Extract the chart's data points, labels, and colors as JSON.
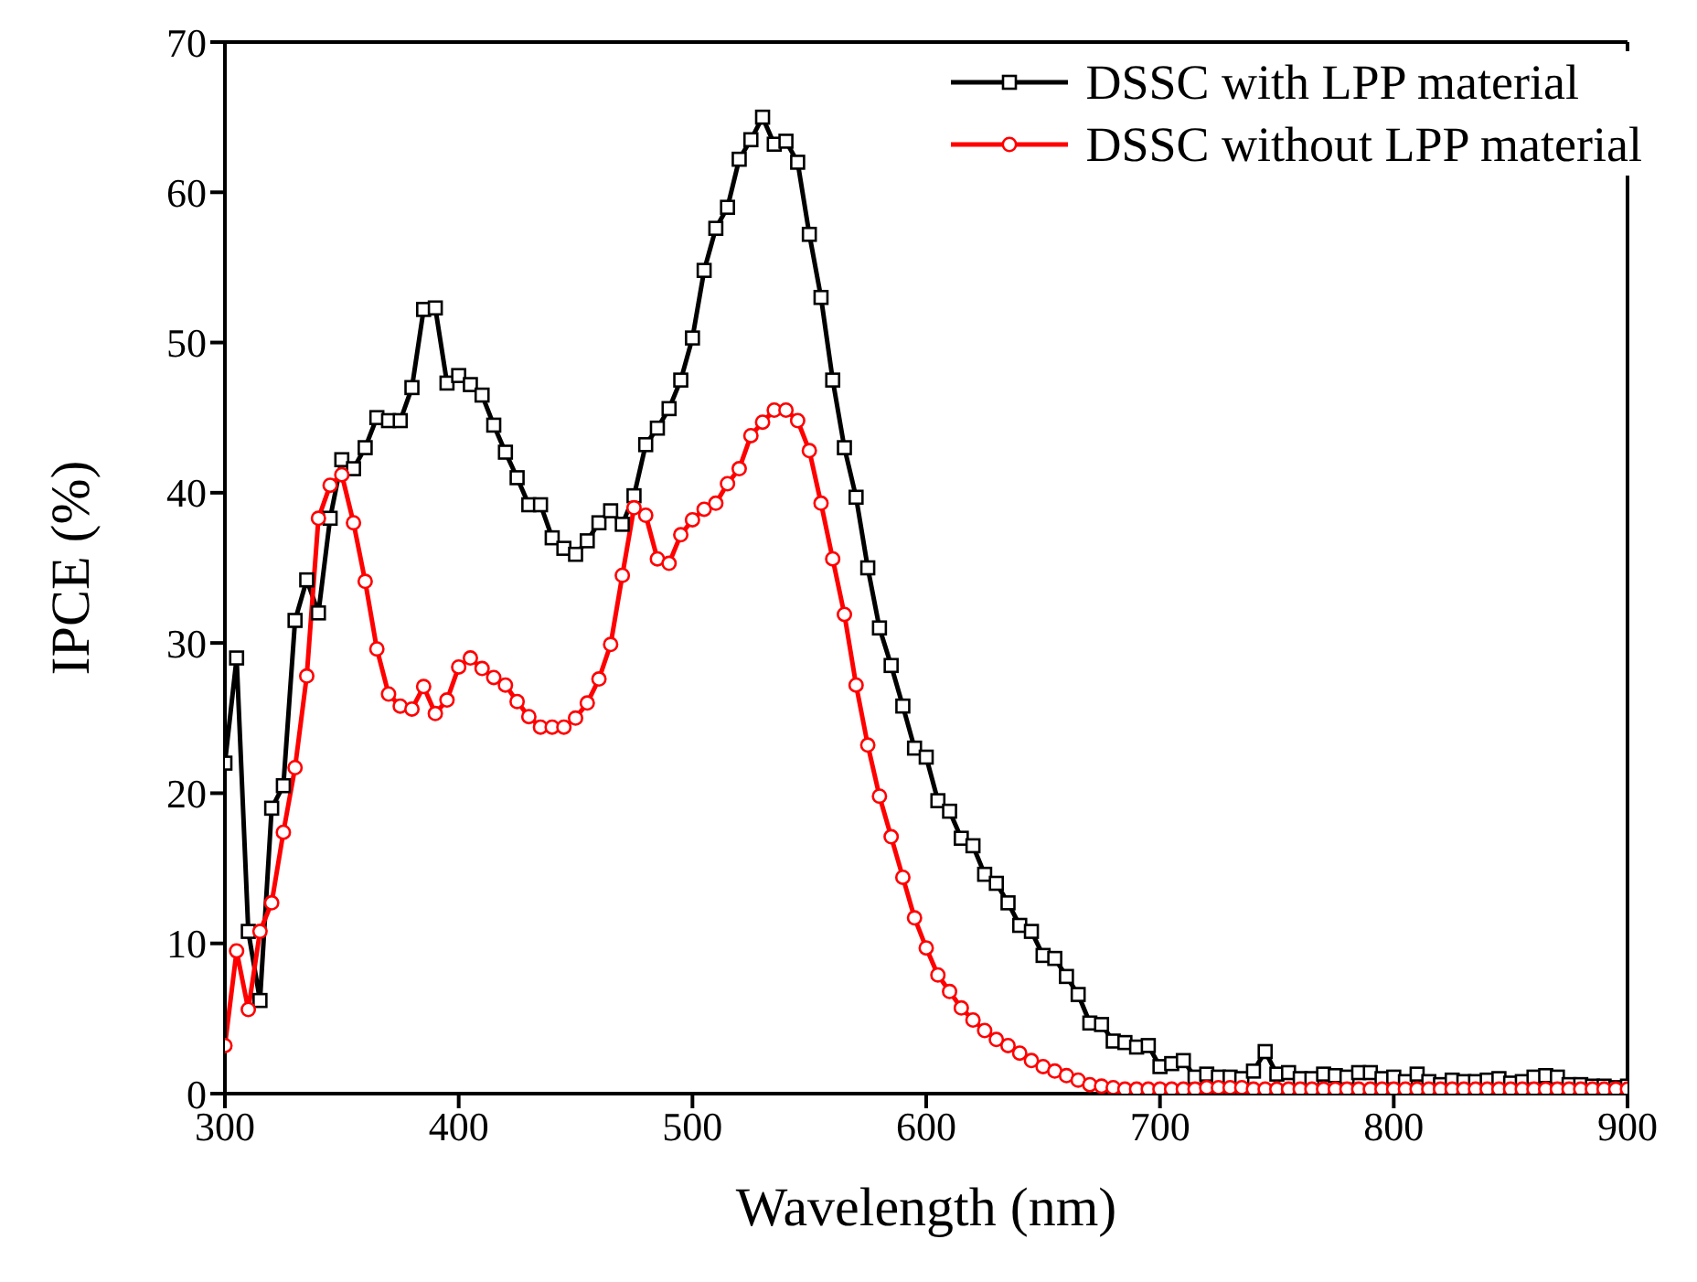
{
  "chart_data": {
    "type": "line",
    "xlabel": "Wavelength (nm)",
    "ylabel": "IPCE (%)",
    "x": [
      300,
      305,
      310,
      315,
      320,
      325,
      330,
      335,
      340,
      345,
      350,
      355,
      360,
      365,
      370,
      375,
      380,
      385,
      390,
      395,
      400,
      405,
      410,
      415,
      420,
      425,
      430,
      435,
      440,
      445,
      450,
      455,
      460,
      465,
      470,
      475,
      480,
      485,
      490,
      495,
      500,
      505,
      510,
      515,
      520,
      525,
      530,
      535,
      540,
      545,
      550,
      555,
      560,
      565,
      570,
      575,
      580,
      585,
      590,
      595,
      600,
      605,
      610,
      615,
      620,
      625,
      630,
      635,
      640,
      645,
      650,
      655,
      660,
      665,
      670,
      675,
      680,
      685,
      690,
      695,
      700,
      705,
      710,
      715,
      720,
      725,
      730,
      735,
      740,
      745,
      750,
      755,
      760,
      765,
      770,
      775,
      780,
      785,
      790,
      795,
      800,
      805,
      810,
      815,
      820,
      825,
      830,
      835,
      840,
      845,
      850,
      855,
      860,
      865,
      870,
      875,
      880,
      885,
      890,
      895,
      900
    ],
    "series": [
      {
        "name": "DSSC with LPP material",
        "color": "#000000",
        "marker": "square",
        "values": [
          22,
          29,
          10.8,
          6.2,
          19,
          20.5,
          31.5,
          34.2,
          32,
          38.3,
          42.2,
          41.6,
          43,
          45,
          44.8,
          44.8,
          47,
          52.2,
          52.3,
          47.3,
          47.8,
          47.2,
          46.5,
          44.5,
          42.7,
          41,
          39.2,
          39.2,
          37,
          36.3,
          35.9,
          36.8,
          38,
          38.8,
          37.9,
          39.8,
          43.2,
          44.3,
          45.6,
          47.5,
          50.3,
          54.8,
          57.6,
          59,
          62.2,
          63.5,
          65,
          63.2,
          63.4,
          62,
          57.2,
          53,
          47.5,
          43,
          39.7,
          35,
          31,
          28.5,
          25.8,
          23,
          22.4,
          19.5,
          18.8,
          17,
          16.5,
          14.6,
          14,
          12.7,
          11.2,
          10.8,
          9.2,
          9,
          7.8,
          6.6,
          4.7,
          4.6,
          3.5,
          3.4,
          3.1,
          3.2,
          1.8,
          2,
          2.2,
          1.1,
          1.3,
          1.1,
          1.1,
          1,
          1.5,
          2.8,
          1.3,
          1.4,
          1,
          1,
          1.3,
          1.2,
          1.1,
          1.4,
          1.4,
          1,
          1.1,
          0.8,
          1.3,
          0.8,
          0.6,
          0.9,
          0.8,
          0.8,
          0.9,
          1,
          0.7,
          0.8,
          1.1,
          1.2,
          1.1,
          0.6,
          0.6,
          0.5,
          0.5,
          0.4,
          0.5
        ]
      },
      {
        "name": "DSSC without LPP material",
        "color": "#ff0000",
        "marker": "circle",
        "values": [
          3.2,
          9.5,
          5.6,
          10.8,
          12.7,
          17.4,
          21.7,
          27.8,
          38.3,
          40.5,
          41.2,
          38,
          34.1,
          29.6,
          26.6,
          25.8,
          25.6,
          27.1,
          25.3,
          26.2,
          28.4,
          29,
          28.3,
          27.7,
          27.2,
          26.1,
          25.1,
          24.4,
          24.4,
          24.4,
          25,
          26,
          27.6,
          29.9,
          34.5,
          39,
          38.5,
          35.6,
          35.3,
          37.2,
          38.2,
          38.9,
          39.3,
          40.6,
          41.6,
          43.8,
          44.7,
          45.5,
          45.5,
          44.8,
          42.8,
          39.3,
          35.6,
          31.9,
          27.2,
          23.2,
          19.8,
          17.1,
          14.4,
          11.7,
          9.7,
          7.9,
          6.8,
          5.7,
          4.9,
          4.2,
          3.6,
          3.2,
          2.7,
          2.2,
          1.8,
          1.5,
          1.2,
          0.9,
          0.6,
          0.5,
          0.4,
          0.3,
          0.3,
          0.3,
          0.3,
          0.3,
          0.3,
          0.3,
          0.4,
          0.4,
          0.4,
          0.4,
          0.3,
          0.3,
          0.3,
          0.3,
          0.3,
          0.3,
          0.3,
          0.3,
          0.3,
          0.3,
          0.3,
          0.3,
          0.3,
          0.3,
          0.3,
          0.3,
          0.3,
          0.3,
          0.3,
          0.3,
          0.3,
          0.3,
          0.3,
          0.3,
          0.3,
          0.3,
          0.3,
          0.3,
          0.3,
          0.3,
          0.3,
          0.3,
          0.3
        ]
      }
    ],
    "xlim": [
      300,
      900
    ],
    "xticks": [
      300,
      400,
      500,
      600,
      700,
      800,
      900
    ],
    "ylim": [
      0,
      70
    ],
    "yticks": [
      0,
      10,
      20,
      30,
      40,
      50,
      60,
      70
    ],
    "legend": "top right",
    "line_style": "solid"
  }
}
